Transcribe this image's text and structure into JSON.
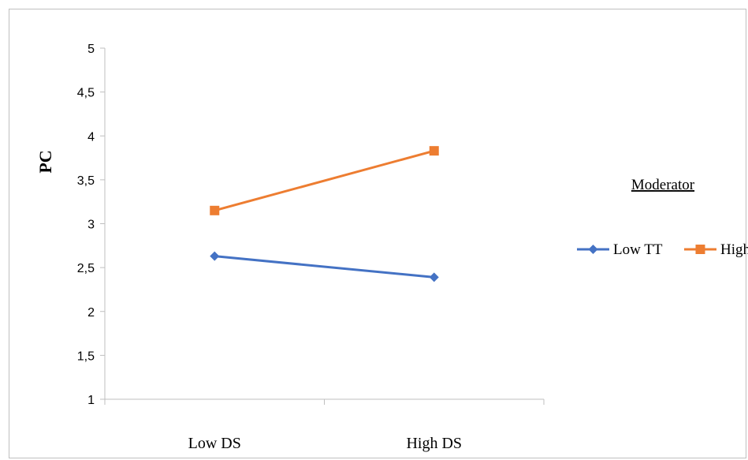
{
  "chart_data": {
    "type": "line",
    "categories": [
      "Low DS",
      "High DS"
    ],
    "series": [
      {
        "name": "Low TT",
        "values": [
          2.63,
          2.39
        ],
        "color": "#4472C4",
        "marker": "diamond"
      },
      {
        "name": "High TT",
        "values": [
          3.15,
          3.83
        ],
        "color": "#ED7D31",
        "marker": "square"
      }
    ],
    "ylabel": "PC",
    "xlabel": "",
    "ylim": [
      1,
      5
    ],
    "yticks": [
      "1",
      "1,5",
      "2",
      "2,5",
      "3",
      "3,5",
      "4",
      "4,5",
      "5"
    ],
    "grid": false,
    "legend": {
      "title": "Moderator",
      "position": "right"
    }
  }
}
